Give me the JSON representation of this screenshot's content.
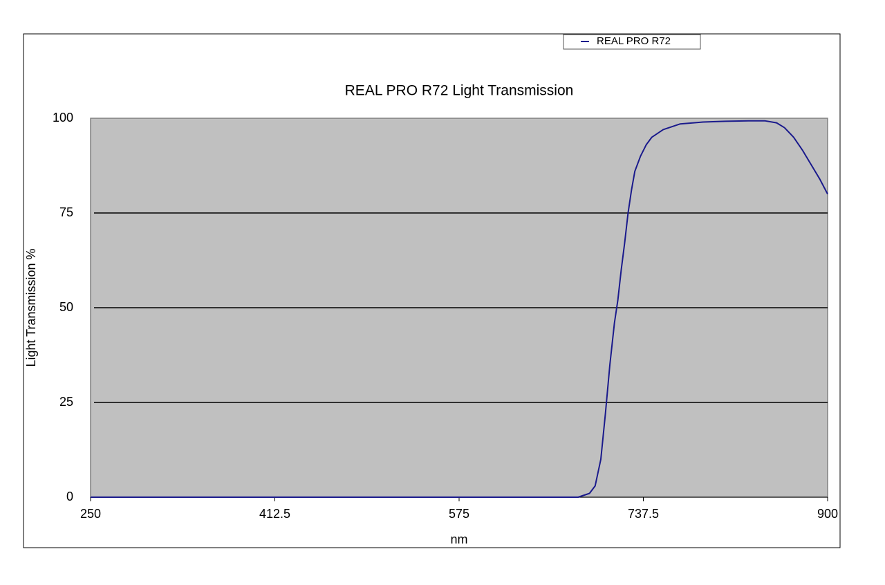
{
  "chart_data": {
    "type": "line",
    "title": "REAL PRO R72 Light Transmission",
    "x_label": "nm",
    "y_label": "Light Transmission %",
    "x": [
      250,
      300,
      400,
      500,
      600,
      640,
      680,
      690,
      695,
      700,
      704,
      708,
      712,
      715,
      718,
      721,
      724,
      727,
      730,
      735,
      740,
      745,
      755,
      770,
      790,
      810,
      830,
      845,
      855,
      862,
      870,
      878,
      886,
      893,
      900
    ],
    "series": [
      {
        "name": "REAL PRO R72",
        "color": "#1a1a8c",
        "values": [
          0,
          0,
          0,
          0,
          0,
          0,
          0,
          1,
          3,
          10,
          22,
          35,
          46,
          52,
          60,
          67,
          75,
          81,
          86,
          90,
          93,
          95,
          97,
          98.5,
          99,
          99.2,
          99.3,
          99.3,
          98.8,
          97.5,
          95,
          91.5,
          87.5,
          84,
          80
        ]
      }
    ],
    "xlim": [
      250,
      900
    ],
    "xticks": [
      250,
      412.5,
      575,
      737.5,
      900
    ],
    "ylim": [
      0,
      100
    ],
    "yticks": [
      0,
      25,
      50,
      75,
      100
    ],
    "grid": true,
    "legend": "top-right",
    "plot_background": "#c0c0c0"
  }
}
